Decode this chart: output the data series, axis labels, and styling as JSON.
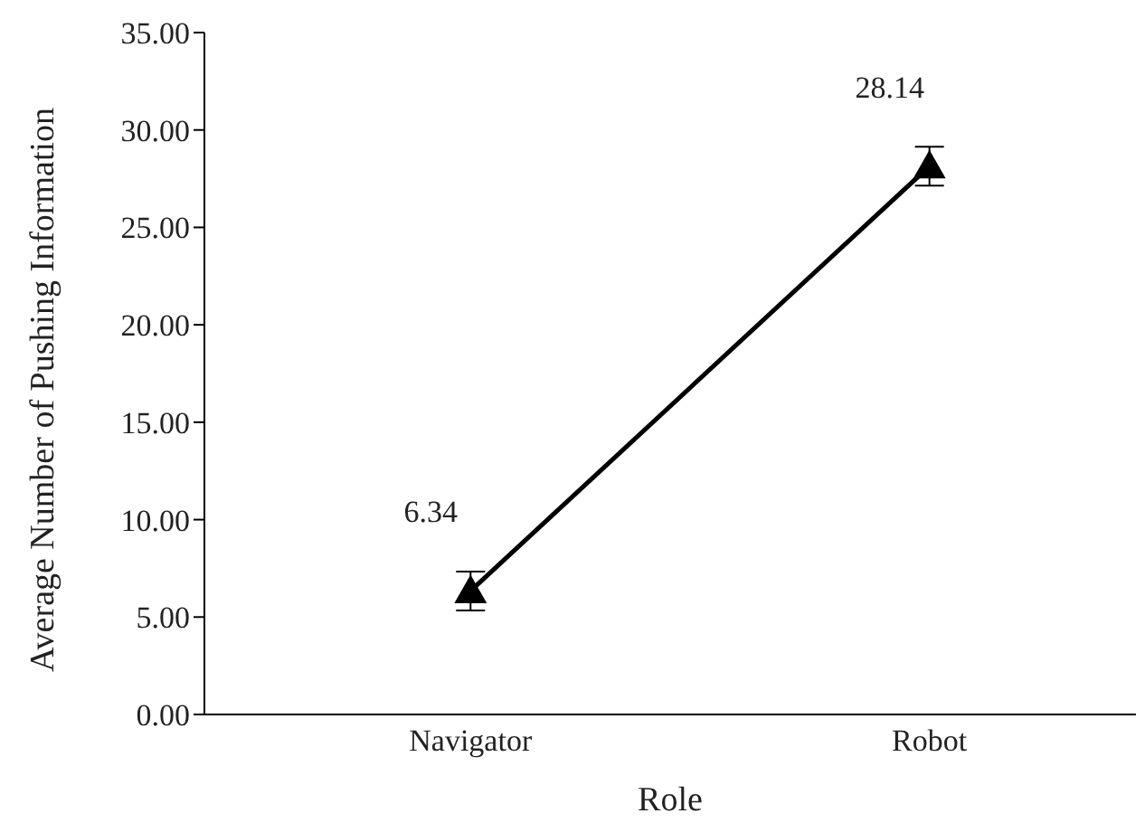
{
  "chart_data": {
    "type": "line",
    "xlabel": "Role",
    "ylabel": "Average Number of Pushing Information",
    "categories": [
      "Navigator",
      "Robot"
    ],
    "values": [
      6.34,
      28.14
    ],
    "errors": [
      1,
      1
    ],
    "color": "#000000",
    "marker": "triangle",
    "line_style": "solid",
    "data_labels": true,
    "ylim": [
      0,
      35
    ],
    "yticks": [
      {
        "value": 0,
        "label": "0.00"
      },
      {
        "value": 5,
        "label": "5.00"
      },
      {
        "value": 10,
        "label": "10.00"
      },
      {
        "value": 15,
        "label": "15.00"
      },
      {
        "value": 20,
        "label": "20.00"
      },
      {
        "value": 25,
        "label": "25.00"
      },
      {
        "value": 30,
        "label": "30.00"
      },
      {
        "value": 35,
        "label": "35.00"
      }
    ],
    "grid": false,
    "legend": false
  }
}
